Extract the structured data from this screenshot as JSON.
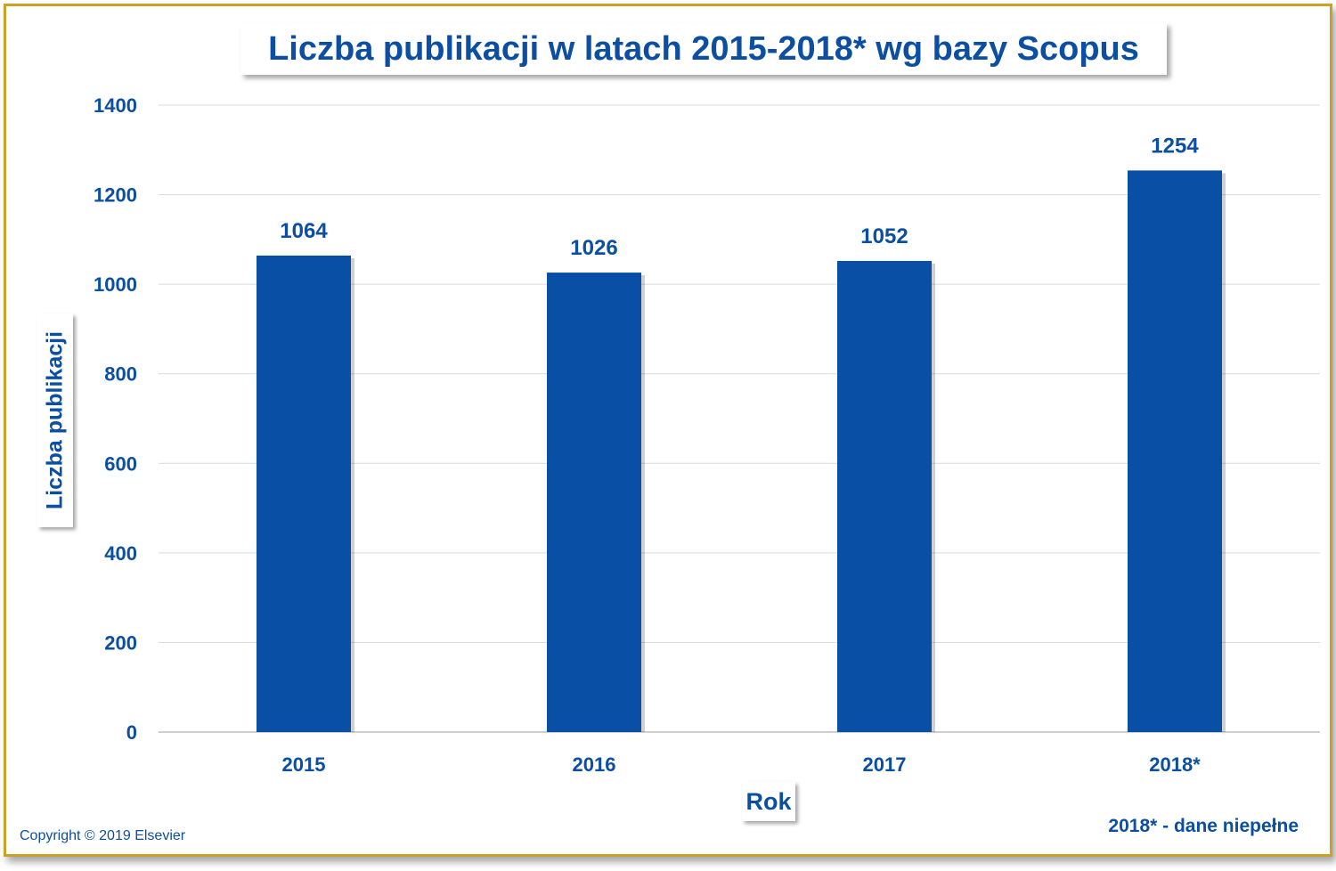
{
  "chart_data": {
    "type": "bar",
    "title": "Liczba publikacji w latach 2015-2018* wg bazy Scopus",
    "xlabel": "Rok",
    "ylabel": "Liczba publikacji",
    "categories": [
      "2015",
      "2016",
      "2017",
      "2018*"
    ],
    "values": [
      1064,
      1026,
      1052,
      1254
    ],
    "yticks": [
      "0",
      "200",
      "400",
      "600",
      "800",
      "1000",
      "1200",
      "1400"
    ],
    "ylim": [
      0,
      1400
    ],
    "grid": true,
    "bar_color": "#0a4fa6",
    "text_color": "#0b4ea2",
    "frame_color": "#c9a227"
  },
  "footnote": "2018* - dane niepełne",
  "copyright": "Copyright © 2019 Elsevier"
}
